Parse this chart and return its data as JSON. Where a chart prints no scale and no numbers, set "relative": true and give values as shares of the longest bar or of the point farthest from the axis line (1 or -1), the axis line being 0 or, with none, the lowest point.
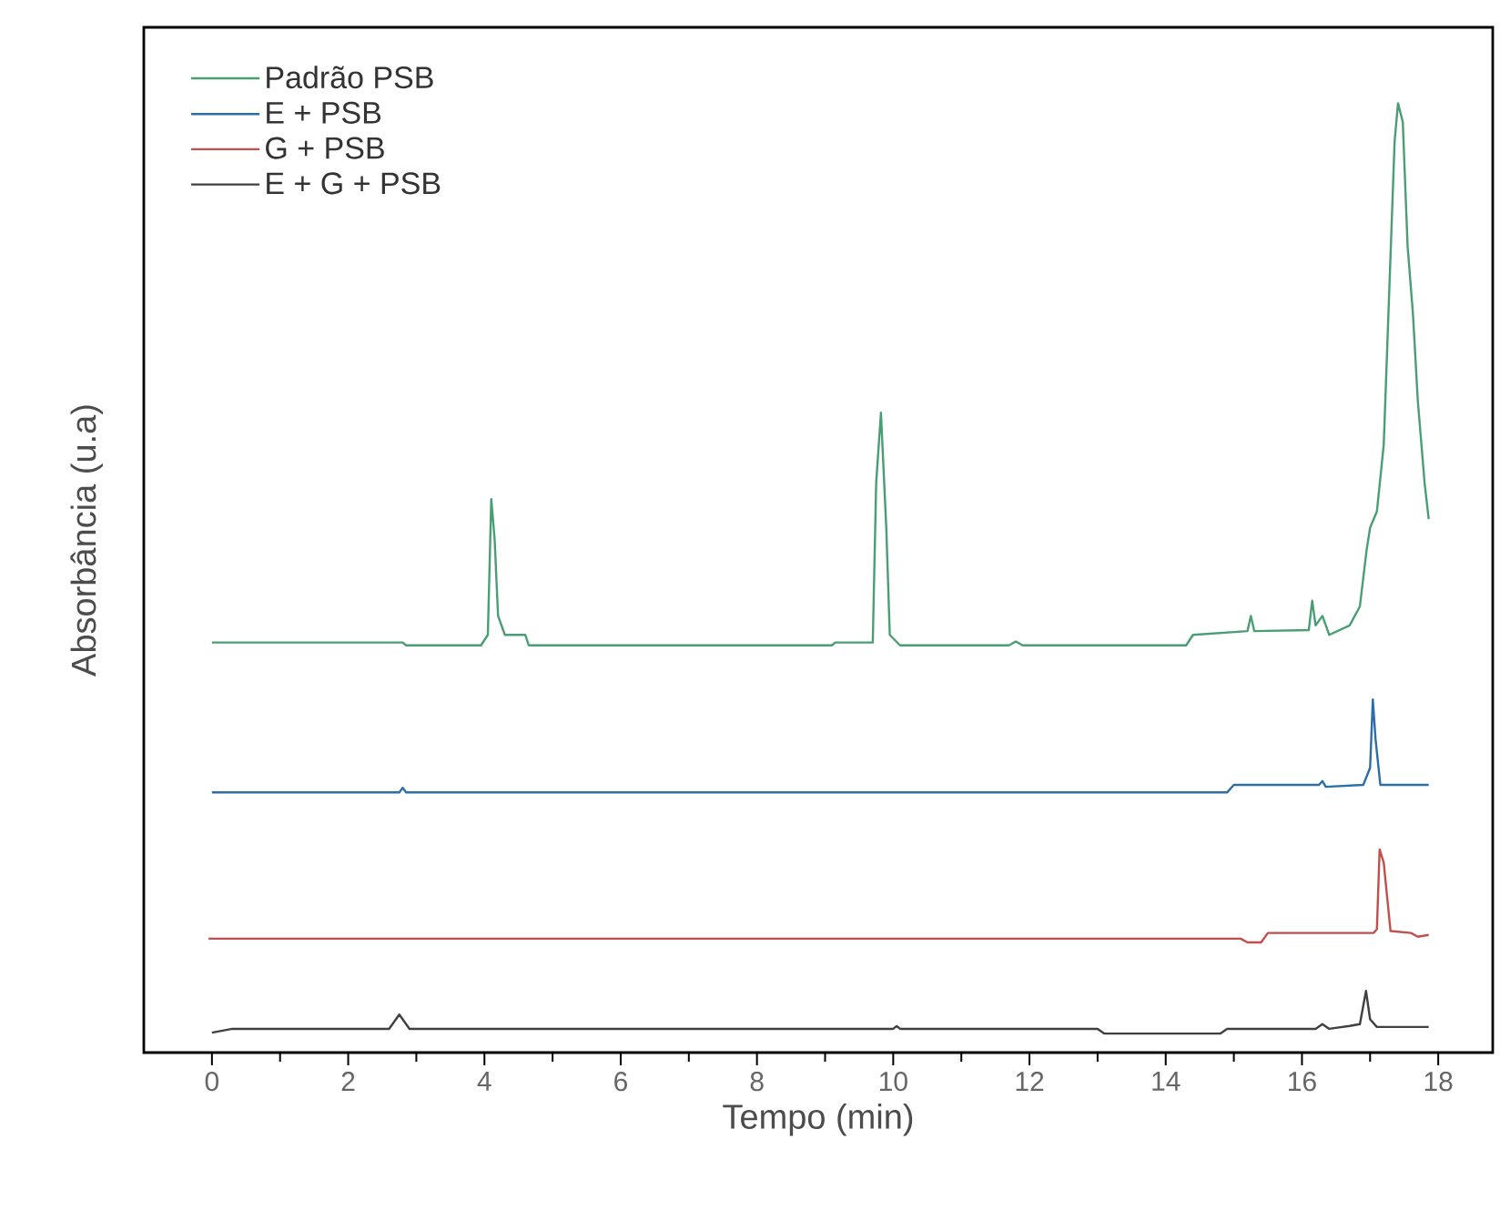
{
  "chart_data": {
    "type": "line",
    "xlabel": "Tempo (min)",
    "ylabel": "Absorbância (u.a)",
    "relative": true,
    "xlim": [
      -1,
      18.8
    ],
    "xticks": [
      0,
      2,
      4,
      6,
      8,
      10,
      12,
      14,
      16,
      18
    ],
    "tick_labels": "x",
    "legend": "top left",
    "line_style": "solid",
    "marker": "none",
    "series": [
      {
        "name": "Padrão PSB",
        "color": "#4a9e74",
        "x": [
          0,
          2.8,
          2.85,
          3.95,
          4.05,
          4.1,
          4.15,
          4.2,
          4.3,
          4.6,
          4.65,
          9.1,
          9.15,
          9.7,
          9.75,
          9.82,
          9.9,
          9.95,
          10.1,
          11.7,
          11.8,
          11.9,
          14.3,
          14.4,
          15.2,
          15.25,
          15.3,
          16.1,
          16.15,
          16.2,
          16.3,
          16.4,
          16.7,
          16.85,
          16.95,
          17.0,
          17.1,
          17.2,
          17.28,
          17.36,
          17.41,
          17.48,
          17.55,
          17.63,
          17.7,
          17.8,
          17.86
        ],
        "values": [
          0.432,
          0.432,
          0.429,
          0.429,
          0.44,
          0.583,
          0.54,
          0.46,
          0.44,
          0.44,
          0.429,
          0.429,
          0.432,
          0.432,
          0.6,
          0.674,
          0.55,
          0.44,
          0.429,
          0.429,
          0.433,
          0.429,
          0.429,
          0.44,
          0.444,
          0.46,
          0.444,
          0.445,
          0.476,
          0.45,
          0.46,
          0.44,
          0.45,
          0.47,
          0.53,
          0.553,
          0.57,
          0.64,
          0.8,
          0.96,
          1.0,
          0.98,
          0.85,
          0.777,
          0.687,
          0.6,
          0.562
        ]
      },
      {
        "name": "E + PSB",
        "color": "#2b6ea8",
        "x": [
          0,
          2.75,
          2.8,
          2.85,
          14.9,
          15.0,
          16.25,
          16.3,
          16.35,
          16.9,
          17.0,
          17.04,
          17.08,
          17.15,
          17.86
        ],
        "values": [
          0.274,
          0.274,
          0.279,
          0.274,
          0.274,
          0.282,
          0.282,
          0.286,
          0.28,
          0.282,
          0.3,
          0.372,
          0.33,
          0.282,
          0.282
        ]
      },
      {
        "name": "G + PSB",
        "color": "#c0504d",
        "x": [
          -0.05,
          15.1,
          15.2,
          15.4,
          15.5,
          17.05,
          17.1,
          17.14,
          17.2,
          17.3,
          17.6,
          17.7,
          17.86
        ],
        "values": [
          0.12,
          0.12,
          0.116,
          0.116,
          0.126,
          0.126,
          0.13,
          0.214,
          0.2,
          0.128,
          0.126,
          0.122,
          0.124
        ]
      },
      {
        "name": "E + G + PSB",
        "color": "#404040",
        "x": [
          0,
          0.3,
          2.6,
          2.75,
          2.9,
          10.0,
          10.05,
          10.1,
          13.0,
          13.1,
          14.8,
          14.9,
          16.2,
          16.3,
          16.4,
          16.7,
          16.85,
          16.94,
          17.0,
          17.1,
          17.86
        ],
        "values": [
          0.021,
          0.025,
          0.025,
          0.04,
          0.025,
          0.025,
          0.028,
          0.025,
          0.025,
          0.02,
          0.02,
          0.025,
          0.025,
          0.03,
          0.025,
          0.028,
          0.03,
          0.065,
          0.035,
          0.027,
          0.027
        ]
      }
    ]
  }
}
